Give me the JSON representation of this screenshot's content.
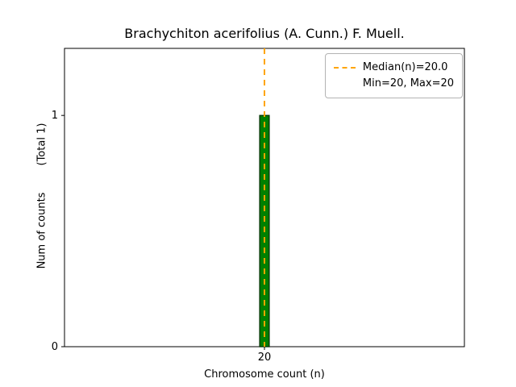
{
  "figure": {
    "title": "Brachychiton acerifolius (A. Cunn.) F. Muell.",
    "xlabel": "Chromosome count (n)",
    "ylabel": "Num of counts        (Total 1)",
    "legend": {
      "line1": "Median(n)=20.0",
      "line2": "Min=20, Max=20"
    }
  },
  "chart_data": {
    "type": "bar",
    "title": "Brachychiton acerifolius (A. Cunn.) F. Muell.",
    "xlabel": "Chromosome count (n)",
    "ylabel": "Num of counts (Total 1)",
    "categories": [
      20
    ],
    "values": [
      1
    ],
    "total_counts": 1,
    "median_n": 20.0,
    "min_n": 20,
    "max_n": 20,
    "xticks": [
      20
    ],
    "yticks": [
      0,
      1
    ],
    "xlim": [
      17.9,
      22.1
    ],
    "ylim": [
      0,
      1.29
    ],
    "bar_width": 0.1,
    "grid": false,
    "legend_position": "upper right",
    "colors": {
      "bar": "#008000",
      "bar_edge": "#003300",
      "median_line": "#FFA500",
      "axis": "#000000",
      "background": "#ffffff"
    }
  }
}
